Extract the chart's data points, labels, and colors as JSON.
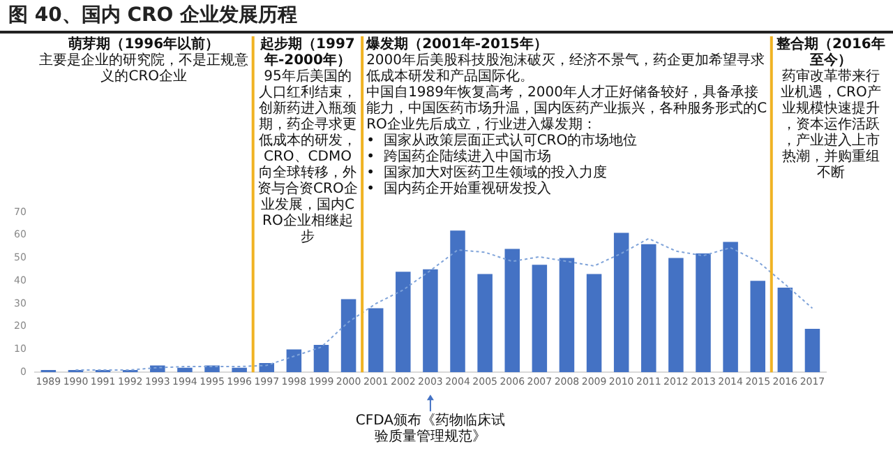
{
  "chart_data": {
    "type": "bar",
    "title": "图 40、国内 CRO 企业发展历程",
    "categories": [
      "1989",
      "1990",
      "1991",
      "1992",
      "1993",
      "1994",
      "1995",
      "1996",
      "1997",
      "1998",
      "1999",
      "2000",
      "2001",
      "2002",
      "2003",
      "2004",
      "2005",
      "2006",
      "2007",
      "2008",
      "2009",
      "2010",
      "2011",
      "2012",
      "2013",
      "2014",
      "2015",
      "2016",
      "2017"
    ],
    "series": [
      {
        "color": "#4472c4",
        "values": [
          1,
          1,
          1,
          1,
          3,
          2,
          3,
          2,
          4,
          10,
          12,
          32,
          28,
          44,
          45,
          62,
          43,
          54,
          47,
          50,
          43,
          61,
          56,
          50,
          52,
          57,
          40,
          37,
          19
        ]
      },
      {
        "type": "line",
        "color": "#7fa3d9",
        "line_style": "dotted",
        "marker": "none",
        "values": [
          null,
          1,
          1,
          1,
          2,
          2.5,
          2.5,
          2.5,
          3,
          7,
          11,
          22,
          30,
          36,
          44.5,
          53.5,
          52.5,
          48.5,
          50.5,
          48.5,
          46.5,
          52,
          58.5,
          53,
          51,
          54.5,
          48.5,
          38.5,
          28
        ]
      }
    ],
    "ylim": [
      0,
      70
    ],
    "yticks": [
      0,
      10,
      20,
      30,
      40,
      50,
      60,
      70
    ],
    "grid": false,
    "legend": false,
    "annotations": [
      "萌芽期（1996年以前）",
      "主要是企业的研究院，不是正规意义的CRO企业",
      "起步期（1997年-2000年）",
      "95年后美国的人口红利结束，创新药进入瓶颈期，药企寻求更低成本的研发，CRO、CDMO向全球转移，外资与合资CRO企业发展，国内CRO企业相继起步",
      "爆发期（2001年-2015年）",
      "2000年后美股科技股泡沫破灭，经济不景气，药企更加希望寻求低成本研发和产品国际化。",
      "中国自1989年恢复高考，2000年人才正好储备较好，具备承接能力，中国医药市场升温，国内医药产业振兴，各种服务形式的CRO企业先后成立，行业进入爆发期：",
      "•  国家从政策层面正式认可CRO的市场地位",
      "•  跨国药企陆续进入中国市场",
      "•  国家加大对医药卫生领域的投入力度",
      "•  国内药企开始重视研发投入",
      "整合期（2016年至今）",
      "药审改革带来行业机遇，CRO产业规模快速提升，资本运作活跃，产业进入上市热潮，并购重组不断",
      {
        "text": "CFDA颁布《药物临床试验质量管理规范》",
        "x": "2003"
      }
    ]
  }
}
